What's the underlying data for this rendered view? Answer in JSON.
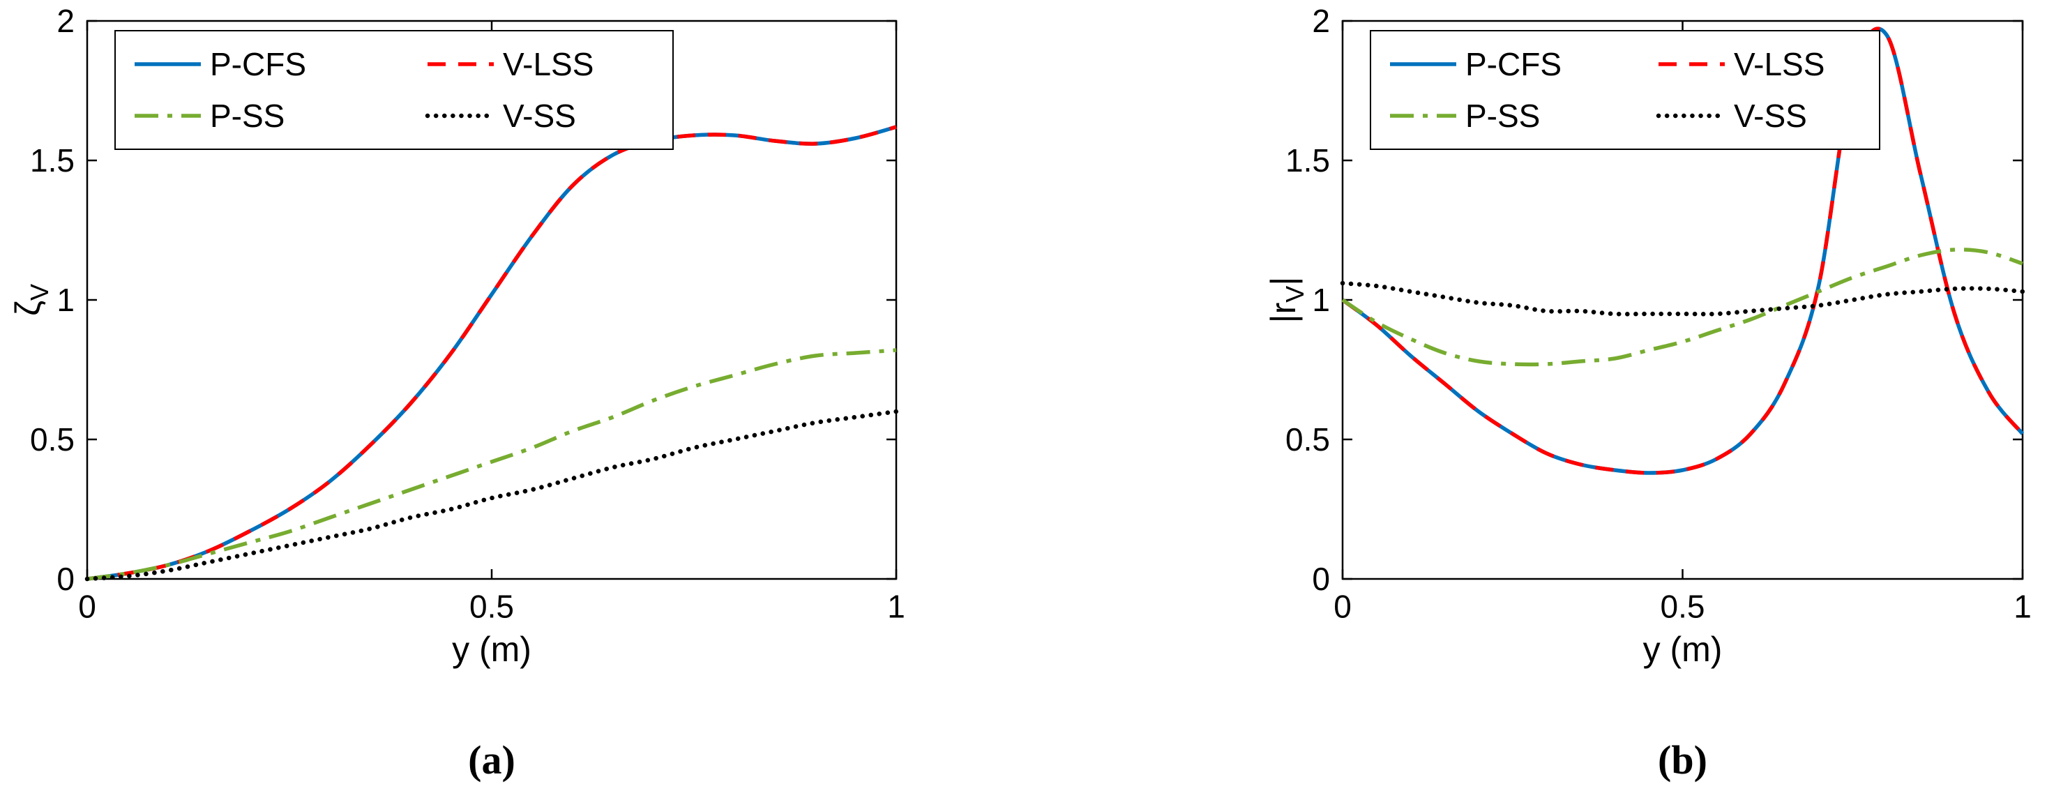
{
  "figure": {
    "background": "#ffffff",
    "description": "two-panel line plot"
  },
  "chart_data": [
    {
      "type": "line",
      "caption": "(a)",
      "xlabel": "y (m)",
      "ylabel": "ζV",
      "ylabel_parts": [
        {
          "t": "ζ"
        },
        {
          "t": "V",
          "sub": true
        }
      ],
      "xlim": [
        0,
        1
      ],
      "ylim": [
        0,
        2
      ],
      "xticks": [
        0,
        0.5,
        1
      ],
      "xtick_labels": [
        "0",
        "0.5",
        "1"
      ],
      "yticks": [
        0,
        0.5,
        1,
        1.5,
        2
      ],
      "ytick_labels": [
        "0",
        "0.5",
        "1",
        "1.5",
        "2"
      ],
      "grid": false,
      "legend": {
        "position": "northwest",
        "columns": 2,
        "entries": [
          "P-CFS",
          "V-LSS",
          "P-SS",
          "V-SS"
        ]
      },
      "x": [
        0,
        0.05,
        0.1,
        0.15,
        0.2,
        0.25,
        0.3,
        0.35,
        0.4,
        0.45,
        0.5,
        0.55,
        0.6,
        0.65,
        0.7,
        0.75,
        0.8,
        0.85,
        0.9,
        0.95,
        1
      ],
      "series": [
        {
          "name": "P-CFS",
          "color": "#0072BD",
          "style": "solid",
          "width": 5.5,
          "values": [
            0,
            0.02,
            0.05,
            0.1,
            0.17,
            0.25,
            0.35,
            0.48,
            0.63,
            0.81,
            1.02,
            1.23,
            1.41,
            1.52,
            1.57,
            1.59,
            1.59,
            1.57,
            1.56,
            1.58,
            1.62
          ]
        },
        {
          "name": "V-LSS",
          "color": "#FF0000",
          "style": "dashed",
          "width": 5.5,
          "values": [
            0,
            0.02,
            0.05,
            0.1,
            0.17,
            0.25,
            0.35,
            0.48,
            0.63,
            0.81,
            1.02,
            1.23,
            1.41,
            1.52,
            1.57,
            1.59,
            1.59,
            1.57,
            1.56,
            1.58,
            1.62
          ]
        },
        {
          "name": "P-SS",
          "color": "#77AC30",
          "style": "dashdot",
          "width": 5.5,
          "values": [
            0,
            0.02,
            0.05,
            0.09,
            0.13,
            0.17,
            0.22,
            0.27,
            0.32,
            0.37,
            0.42,
            0.47,
            0.53,
            0.58,
            0.64,
            0.69,
            0.73,
            0.77,
            0.8,
            0.81,
            0.82
          ]
        },
        {
          "name": "V-SS",
          "color": "#000000",
          "style": "dotted",
          "width": 6.5,
          "values": [
            0,
            0.01,
            0.03,
            0.06,
            0.09,
            0.12,
            0.15,
            0.18,
            0.22,
            0.25,
            0.29,
            0.32,
            0.36,
            0.4,
            0.43,
            0.47,
            0.5,
            0.53,
            0.56,
            0.58,
            0.6
          ]
        }
      ]
    },
    {
      "type": "line",
      "caption": "(b)",
      "xlabel": "y (m)",
      "ylabel": "|rV|",
      "ylabel_parts": [
        {
          "t": "|r"
        },
        {
          "t": "V",
          "sub": true
        },
        {
          "t": "|"
        }
      ],
      "xlim": [
        0,
        1
      ],
      "ylim": [
        0,
        2
      ],
      "xticks": [
        0,
        0.5,
        1
      ],
      "xtick_labels": [
        "0",
        "0.5",
        "1"
      ],
      "yticks": [
        0,
        0.5,
        1,
        1.5,
        2
      ],
      "ytick_labels": [
        "0",
        "0.5",
        "1",
        "1.5",
        "2"
      ],
      "grid": false,
      "legend": {
        "position": "northwest",
        "columns": 2,
        "entries": [
          "P-CFS",
          "V-LSS",
          "P-SS",
          "V-SS"
        ]
      },
      "x": [
        0,
        0.05,
        0.1,
        0.15,
        0.2,
        0.25,
        0.3,
        0.35,
        0.4,
        0.45,
        0.5,
        0.55,
        0.6,
        0.65,
        0.7,
        0.75,
        0.8,
        0.85,
        0.9,
        0.95,
        1
      ],
      "series": [
        {
          "name": "P-CFS",
          "color": "#0072BD",
          "style": "solid",
          "width": 5.5,
          "values": [
            1,
            0.91,
            0.8,
            0.7,
            0.6,
            0.52,
            0.45,
            0.41,
            0.39,
            0.38,
            0.39,
            0.43,
            0.52,
            0.7,
            1.05,
            1.8,
            1.95,
            1.45,
            0.95,
            0.67,
            0.52
          ]
        },
        {
          "name": "V-LSS",
          "color": "#FF0000",
          "style": "dashed",
          "width": 5.5,
          "values": [
            1,
            0.91,
            0.8,
            0.7,
            0.6,
            0.52,
            0.45,
            0.41,
            0.39,
            0.38,
            0.39,
            0.43,
            0.52,
            0.7,
            1.05,
            1.8,
            1.95,
            1.45,
            0.95,
            0.67,
            0.52
          ]
        },
        {
          "name": "P-SS",
          "color": "#77AC30",
          "style": "dashdot",
          "width": 5.5,
          "values": [
            1,
            0.92,
            0.86,
            0.81,
            0.78,
            0.77,
            0.77,
            0.78,
            0.79,
            0.82,
            0.85,
            0.89,
            0.93,
            0.98,
            1.03,
            1.08,
            1.12,
            1.16,
            1.18,
            1.17,
            1.13
          ]
        },
        {
          "name": "V-SS",
          "color": "#000000",
          "style": "dotted",
          "width": 6.5,
          "values": [
            1.06,
            1.05,
            1.03,
            1.01,
            0.99,
            0.98,
            0.96,
            0.96,
            0.95,
            0.95,
            0.95,
            0.95,
            0.96,
            0.97,
            0.98,
            1,
            1.02,
            1.03,
            1.04,
            1.04,
            1.03
          ]
        }
      ]
    }
  ]
}
